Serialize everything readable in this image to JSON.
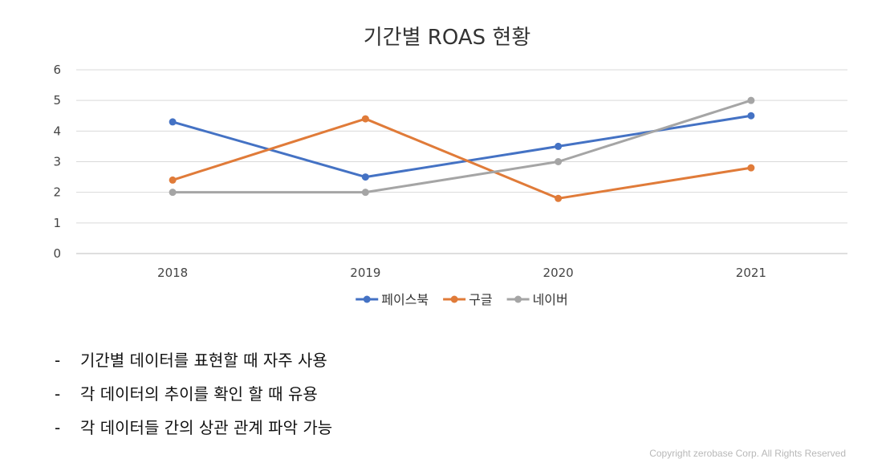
{
  "chart_data": {
    "type": "line",
    "title": "기간별 ROAS 현황",
    "xlabel": "",
    "ylabel": "",
    "categories": [
      "2018",
      "2019",
      "2020",
      "2021"
    ],
    "ylim": [
      0,
      6
    ],
    "yticks": [
      "0",
      "1",
      "2",
      "3",
      "4",
      "5",
      "6"
    ],
    "grid": true,
    "legend_position": "bottom",
    "series": [
      {
        "name": "페이스북",
        "color": "#4472c4",
        "values": [
          4.3,
          2.5,
          3.5,
          4.5
        ]
      },
      {
        "name": "구글",
        "color": "#e07b39",
        "values": [
          2.4,
          4.4,
          1.8,
          2.8
        ]
      },
      {
        "name": "네이버",
        "color": "#a5a5a5",
        "values": [
          2.0,
          2.0,
          3.0,
          5.0
        ]
      }
    ]
  },
  "bullets": [
    {
      "dash": "-",
      "text": "기간별 데이터를 표현할 때 자주 사용"
    },
    {
      "dash": "-",
      "text": "각 데이터의 추이를 확인 할 때 유용"
    },
    {
      "dash": "-",
      "text": "각 데이터들 간의 상관 관계 파악 가능"
    }
  ],
  "copyright": "Copyright zerobase Corp. All Rights Reserved"
}
